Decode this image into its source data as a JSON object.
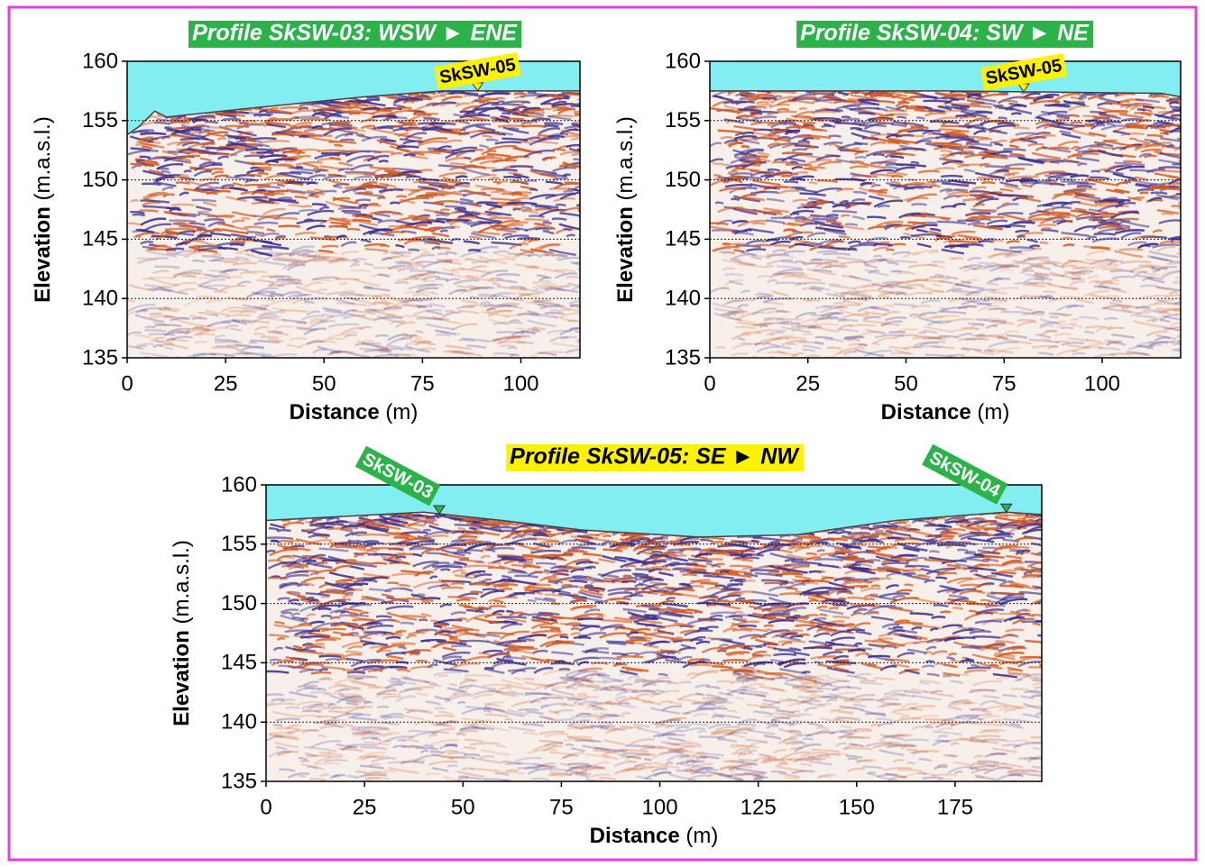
{
  "chart_data": [
    {
      "type": "radargram",
      "title": "Profile SkSW-03: WSW ► ENE",
      "title_background": "#2bb34a",
      "title_color": "#ffffff",
      "xlabel": "Distance",
      "xunit": "(m)",
      "ylabel": "Elevation",
      "yunit": "(m.a.s.l.)",
      "xlim": [
        0,
        115
      ],
      "ylim": [
        135,
        160
      ],
      "xticks": [
        0,
        25,
        50,
        75,
        100
      ],
      "yticks": [
        135,
        140,
        145,
        150,
        155,
        160
      ],
      "grid": true,
      "surface": {
        "x": [
          0,
          3,
          7,
          10,
          30,
          60,
          80,
          115
        ],
        "y": [
          153.8,
          154.5,
          155.8,
          155.3,
          156,
          157,
          157.5,
          157.5
        ]
      },
      "markers": [
        {
          "label": "SkSW-05",
          "x": 89,
          "color": "#fff200"
        }
      ]
    },
    {
      "type": "radargram",
      "title": "Profile SkSW-04: SW ► NE",
      "title_background": "#2bb34a",
      "title_color": "#ffffff",
      "xlabel": "Distance",
      "xunit": "(m)",
      "ylabel": "Elevation",
      "yunit": "(m.a.s.l.)",
      "xlim": [
        0,
        120
      ],
      "ylim": [
        135,
        160
      ],
      "xticks": [
        0,
        25,
        50,
        75,
        100
      ],
      "yticks": [
        135,
        140,
        145,
        150,
        155,
        160
      ],
      "grid": true,
      "surface": {
        "x": [
          0,
          60,
          115,
          120
        ],
        "y": [
          157.5,
          157.5,
          157.3,
          157
        ]
      },
      "markers": [
        {
          "label": "SkSW-05",
          "x": 80,
          "color": "#fff200"
        }
      ]
    },
    {
      "type": "radargram",
      "title": "Profile SkSW-05: SE ► NW",
      "title_background": "#fff200",
      "title_color": "#000000",
      "xlabel": "Distance",
      "xunit": "(m)",
      "ylabel": "Elevation",
      "yunit": "(m.a.s.l.)",
      "xlim": [
        0,
        197
      ],
      "ylim": [
        135,
        160
      ],
      "xticks": [
        0,
        25,
        50,
        75,
        100,
        125,
        150,
        175
      ],
      "yticks": [
        135,
        140,
        145,
        150,
        155,
        160
      ],
      "grid": true,
      "surface": {
        "x": [
          0,
          40,
          60,
          80,
          110,
          135,
          145,
          160,
          188,
          197
        ],
        "y": [
          157,
          157.7,
          157,
          156.2,
          155.6,
          155.8,
          156.3,
          157,
          157.7,
          157.5
        ]
      },
      "markers": [
        {
          "label": "SkSW-03",
          "x": 44,
          "color": "#2bb34a"
        },
        {
          "label": "SkSW-04",
          "x": 188,
          "color": "#2bb34a"
        }
      ]
    }
  ]
}
